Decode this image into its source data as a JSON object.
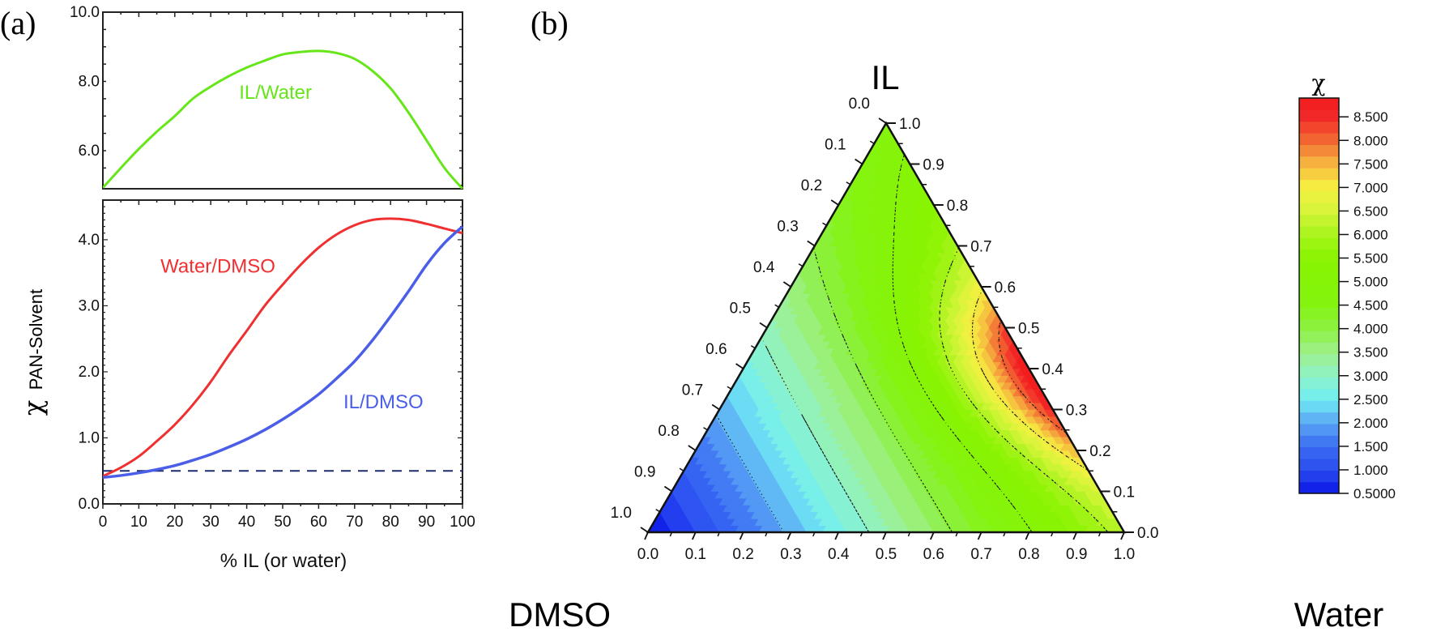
{
  "figure": {
    "panel_a_tag": "(a)",
    "panel_b_tag": "(b)"
  },
  "chart_data": [
    {
      "id": "panel-a",
      "type": "line",
      "title": "",
      "xlabel": "% IL (or water)",
      "ylabel_symbol": "χ",
      "ylabel_subscript": "PAN-Solvent",
      "xlim": [
        0,
        100
      ],
      "x_ticks": [
        "0",
        "10",
        "20",
        "30",
        "40",
        "50",
        "60",
        "70",
        "80",
        "90",
        "100"
      ],
      "upper_axis": {
        "ylim": [
          4.9,
          10.0
        ],
        "y_ticks": [
          {
            "value": 6.0,
            "label": "6.0"
          },
          {
            "value": 8.0,
            "label": "8.0"
          },
          {
            "value": 10.0,
            "label": "10.0"
          }
        ]
      },
      "lower_axis": {
        "ylim": [
          0.0,
          4.6
        ],
        "y_ticks": [
          {
            "value": 0.0,
            "label": "0.0"
          },
          {
            "value": 1.0,
            "label": "1.0"
          },
          {
            "value": 2.0,
            "label": "2.0"
          },
          {
            "value": 3.0,
            "label": "3.0"
          },
          {
            "value": 4.0,
            "label": "4.0"
          }
        ]
      },
      "x": [
        0,
        5,
        10,
        15,
        20,
        25,
        30,
        35,
        40,
        45,
        50,
        55,
        60,
        65,
        70,
        75,
        80,
        85,
        90,
        95,
        100
      ],
      "series": [
        {
          "name": "IL/Water",
          "axis": "upper",
          "color": "#66e619",
          "values": [
            4.93,
            5.5,
            6.05,
            6.55,
            7.0,
            7.5,
            7.85,
            8.15,
            8.4,
            8.6,
            8.78,
            8.85,
            8.88,
            8.82,
            8.65,
            8.3,
            7.8,
            7.1,
            6.3,
            5.5,
            4.9
          ],
          "label_position": {
            "x": 48,
            "y": 7.5
          }
        },
        {
          "name": "Water/DMSO",
          "axis": "lower",
          "color": "#f03030",
          "values": [
            0.42,
            0.55,
            0.72,
            0.95,
            1.2,
            1.5,
            1.85,
            2.25,
            2.62,
            3.0,
            3.32,
            3.62,
            3.88,
            4.08,
            4.22,
            4.3,
            4.32,
            4.3,
            4.24,
            4.17,
            4.1
          ],
          "label_position": {
            "x": 32,
            "y": 3.5
          }
        },
        {
          "name": "IL/DMSO",
          "axis": "lower",
          "color": "#4a5ee8",
          "values": [
            0.4,
            0.43,
            0.47,
            0.52,
            0.58,
            0.66,
            0.75,
            0.86,
            0.98,
            1.12,
            1.28,
            1.46,
            1.66,
            1.9,
            2.16,
            2.48,
            2.84,
            3.22,
            3.62,
            3.95,
            4.2
          ],
          "label_position": {
            "x": 78,
            "y": 1.45
          }
        }
      ],
      "reference_line": {
        "y": 0.5,
        "style": "dashed",
        "color": "#1c2a6e"
      }
    },
    {
      "id": "panel-b",
      "type": "heatmap",
      "subtype": "ternary-contour",
      "title": "",
      "vertices": {
        "top": "IL",
        "left": "DMSO",
        "right": "Water"
      },
      "axis_ticks": [
        "0.0",
        "0.1",
        "0.2",
        "0.3",
        "0.4",
        "0.5",
        "0.6",
        "0.7",
        "0.8",
        "0.9",
        "1.0"
      ],
      "left_axis_ticks": [
        "0.0",
        "0.1",
        "0.2",
        "0.3",
        "0.4",
        "0.5",
        "0.6",
        "0.7",
        "0.8",
        "0.9",
        "1.0"
      ],
      "right_axis_ticks": [
        "1.0",
        "0.9",
        "0.8",
        "0.7",
        "0.6",
        "0.5",
        "0.4",
        "0.3",
        "0.2",
        "0.1",
        "0.0"
      ],
      "bottom_axis_ticks": [
        "0.0",
        "0.1",
        "0.2",
        "0.3",
        "0.4",
        "0.5",
        "0.6",
        "0.7",
        "0.8",
        "0.9",
        "1.0"
      ],
      "colorbar": {
        "title": "χ",
        "range": [
          0.5,
          8.9
        ],
        "ticks": [
          "8.500",
          "8.000",
          "7.500",
          "7.000",
          "6.500",
          "6.000",
          "5.500",
          "5.000",
          "4.500",
          "4.000",
          "3.500",
          "3.000",
          "2.500",
          "2.000",
          "1.500",
          "1.000",
          "0.5000"
        ],
        "tick_values": [
          8.5,
          8.0,
          7.5,
          7.0,
          6.5,
          6.0,
          5.5,
          5.0,
          4.5,
          4.0,
          3.5,
          3.0,
          2.5,
          2.0,
          1.5,
          1.0,
          0.5
        ],
        "color_stops": [
          {
            "value": 0.5,
            "color": "#0a14e6"
          },
          {
            "value": 1.0,
            "color": "#2a4cf0"
          },
          {
            "value": 1.5,
            "color": "#3a6cf2"
          },
          {
            "value": 2.0,
            "color": "#5aa6f4"
          },
          {
            "value": 2.5,
            "color": "#70eef4"
          },
          {
            "value": 3.0,
            "color": "#8ef2c8"
          },
          {
            "value": 3.5,
            "color": "#9ef08a"
          },
          {
            "value": 4.0,
            "color": "#8cf044"
          },
          {
            "value": 4.5,
            "color": "#84f410"
          },
          {
            "value": 5.5,
            "color": "#88f400"
          },
          {
            "value": 6.0,
            "color": "#a8f41c"
          },
          {
            "value": 6.5,
            "color": "#d6f43a"
          },
          {
            "value": 7.0,
            "color": "#f6f040"
          },
          {
            "value": 7.5,
            "color": "#f6b640"
          },
          {
            "value": 8.0,
            "color": "#f26a32"
          },
          {
            "value": 8.5,
            "color": "#f22828"
          },
          {
            "value": 8.9,
            "color": "#f21c1c"
          }
        ]
      },
      "model_note": "χ estimated from visible contour shading: low near DMSO vertex, high near Water side at IL≈0.3-0.6"
    }
  ]
}
